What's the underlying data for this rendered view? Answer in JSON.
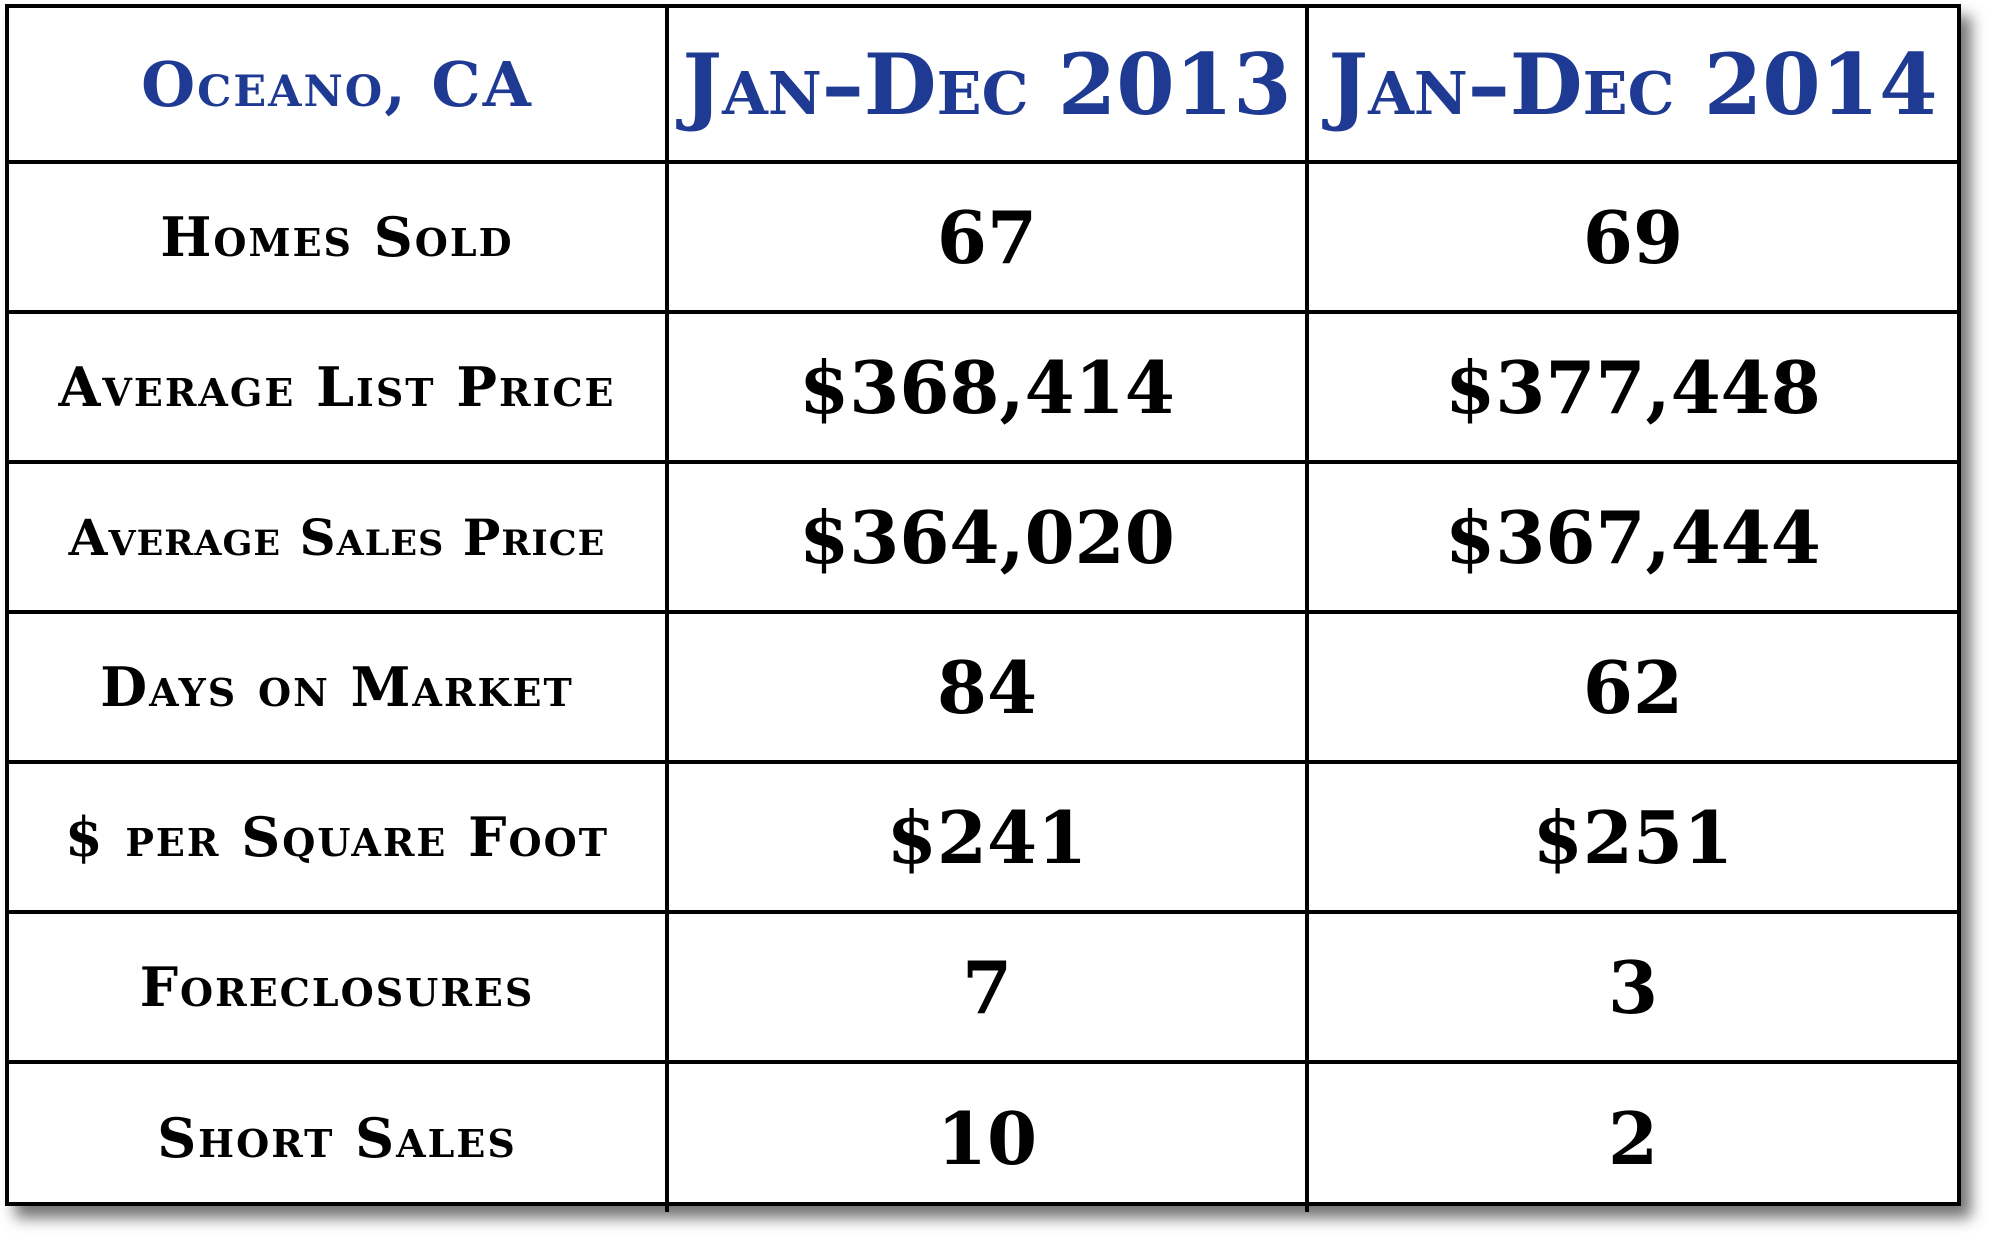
{
  "table": {
    "location": "Oceano, CA",
    "periods": [
      "Jan–Dec 2013",
      "Jan–Dec 2014"
    ],
    "accent_color": "#1f3a93",
    "rows": [
      {
        "label": "Homes Sold",
        "v2013": "67",
        "v2014": "69"
      },
      {
        "label": "Average List Price",
        "v2013": "$368,414",
        "v2014": "$377,448"
      },
      {
        "label": "Average Sales Price",
        "v2013": "$364,020",
        "v2014": "$367,444"
      },
      {
        "label": "Days on Market",
        "v2013": "84",
        "v2014": "62"
      },
      {
        "label": "$ per Square Foot",
        "v2013": "$241",
        "v2014": "$251"
      },
      {
        "label": "Foreclosures",
        "v2013": "7",
        "v2014": "3"
      },
      {
        "label": "Short Sales",
        "v2013": "10",
        "v2014": "2"
      }
    ]
  }
}
